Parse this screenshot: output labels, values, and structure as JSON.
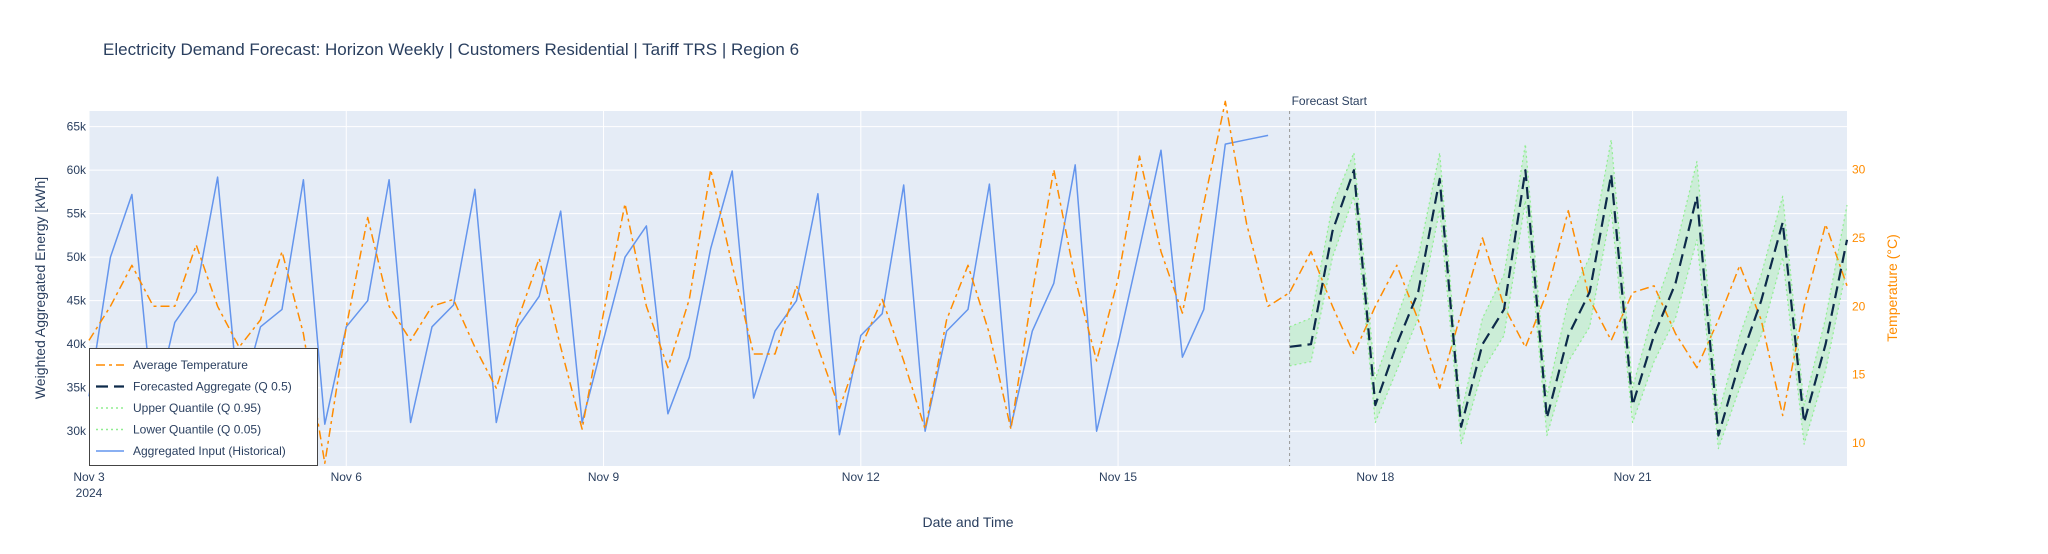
{
  "chart_data": {
    "type": "line",
    "title": "Electricity Demand Forecast: Horizon Weekly | Customers Residential | Tariff TRS | Region 6",
    "xlabel": "Date and Time",
    "ylabel": "Weighted Aggregated Energy [kWh]",
    "y2label": "Temperature (°C)",
    "x_ticks": [
      {
        "day": 0,
        "label": "Nov 3",
        "sublabel": "2024"
      },
      {
        "day": 3,
        "label": "Nov 6",
        "sublabel": ""
      },
      {
        "day": 6,
        "label": "Nov 9",
        "sublabel": ""
      },
      {
        "day": 9,
        "label": "Nov 12",
        "sublabel": ""
      },
      {
        "day": 12,
        "label": "Nov 15",
        "sublabel": ""
      },
      {
        "day": 15,
        "label": "Nov 18",
        "sublabel": ""
      },
      {
        "day": 18,
        "label": "Nov 21",
        "sublabel": ""
      }
    ],
    "xlim": [
      0,
      20.5
    ],
    "ylim": [
      26000,
      66800
    ],
    "y_ticks": [
      {
        "value": 30000,
        "label": "30k"
      },
      {
        "value": 35000,
        "label": "35k"
      },
      {
        "value": 40000,
        "label": "40k"
      },
      {
        "value": 45000,
        "label": "45k"
      },
      {
        "value": 50000,
        "label": "50k"
      },
      {
        "value": 55000,
        "label": "55k"
      },
      {
        "value": 60000,
        "label": "60k"
      },
      {
        "value": 65000,
        "label": "65k"
      }
    ],
    "y2lim": [
      8.3,
      34.3
    ],
    "y2_ticks": [
      {
        "value": 10,
        "label": "10"
      },
      {
        "value": 15,
        "label": "15"
      },
      {
        "value": 20,
        "label": "20"
      },
      {
        "value": 25,
        "label": "25"
      },
      {
        "value": 30,
        "label": "30"
      }
    ],
    "forecast_start": {
      "x": 14,
      "label": "Forecast Start"
    },
    "grid": true,
    "legend_position": "bottom-left",
    "series": [
      {
        "name": "Average Temperature",
        "axis": "y2",
        "color": "#ff8c00",
        "dash": "dashdot",
        "x": [
          0,
          0.25,
          0.5,
          0.75,
          1,
          1.25,
          1.5,
          1.75,
          2,
          2.25,
          2.5,
          2.75,
          3,
          3.25,
          3.5,
          3.75,
          4,
          4.25,
          4.5,
          4.75,
          5,
          5.25,
          5.5,
          5.75,
          6,
          6.25,
          6.5,
          6.75,
          7,
          7.25,
          7.5,
          7.75,
          8,
          8.25,
          8.5,
          8.75,
          9,
          9.25,
          9.5,
          9.75,
          10,
          10.25,
          10.5,
          10.75,
          11,
          11.25,
          11.5,
          11.75,
          12,
          12.25,
          12.5,
          12.75,
          13,
          13.25,
          13.5,
          13.75,
          14,
          14.25,
          14.5,
          14.75,
          15,
          15.25,
          15.5,
          15.75,
          16,
          16.25,
          16.5,
          16.75,
          17,
          17.25,
          17.5,
          17.75,
          18,
          18.25,
          18.5,
          18.75,
          19,
          19.25,
          19.5,
          19.75,
          20,
          20.25,
          20.5
        ],
        "values": [
          17.5,
          20,
          23,
          20,
          20,
          24.5,
          20,
          17,
          19,
          24,
          18,
          8.5,
          18.5,
          26.5,
          20,
          17.5,
          20,
          20.5,
          17,
          14,
          19,
          23.5,
          17,
          11,
          19.5,
          27.5,
          20,
          15.5,
          20.5,
          30,
          23,
          16.5,
          16.5,
          21.5,
          17,
          12.5,
          17,
          20.5,
          16,
          11,
          19,
          23,
          18,
          11,
          21,
          30,
          22,
          16,
          22,
          31,
          24,
          19.5,
          27.5,
          35,
          26,
          20,
          21,
          24,
          20,
          16.5,
          20,
          23,
          19,
          14,
          19.5,
          25,
          20,
          17,
          21,
          27,
          20.5,
          17.5,
          21,
          21.5,
          18,
          15.5,
          19,
          23,
          19,
          12,
          20,
          26,
          21.5
        ]
      },
      {
        "name": "Forecasted Aggregate (Q 0.5)",
        "axis": "y",
        "color": "#0d2a4a",
        "dash": "longdash",
        "x": [
          14,
          14.25,
          14.5,
          14.75,
          15,
          15.25,
          15.5,
          15.75,
          16,
          16.25,
          16.5,
          16.75,
          17,
          17.25,
          17.5,
          17.75,
          18,
          18.25,
          18.5,
          18.75,
          19,
          19.25,
          19.5,
          19.75,
          20,
          20.25,
          20.5
        ],
        "values": [
          39700,
          40000,
          53000,
          60000,
          33000,
          40000,
          46000,
          59000,
          30500,
          40000,
          44000,
          60000,
          31500,
          41000,
          46000,
          59500,
          33000,
          41000,
          47000,
          57000,
          29500,
          38000,
          45000,
          54000,
          31000,
          40000,
          52000
        ]
      },
      {
        "name": "Upper Quantile (Q 0.95)",
        "axis": "y",
        "color": "#90ee90",
        "dash": "dot",
        "x": [
          14,
          14.25,
          14.5,
          14.75,
          15,
          15.25,
          15.5,
          15.75,
          16,
          16.25,
          16.5,
          16.75,
          17,
          17.25,
          17.5,
          17.75,
          18,
          18.25,
          18.5,
          18.75,
          19,
          19.25,
          19.5,
          19.75,
          20,
          20.25,
          20.5
        ],
        "values": [
          42000,
          43000,
          56000,
          62000,
          36000,
          43000,
          50000,
          62000,
          32000,
          43000,
          48000,
          63000,
          34000,
          45000,
          50000,
          63500,
          35000,
          44000,
          51000,
          61000,
          32000,
          41000,
          48000,
          57000,
          33000,
          43000,
          56000
        ]
      },
      {
        "name": "Lower Quantile (Q 0.05)",
        "axis": "y",
        "color": "#90ee90",
        "dash": "dot",
        "x": [
          14,
          14.25,
          14.5,
          14.75,
          15,
          15.25,
          15.5,
          15.75,
          16,
          16.25,
          16.5,
          16.75,
          17,
          17.25,
          17.5,
          17.75,
          18,
          18.25,
          18.5,
          18.75,
          19,
          19.25,
          19.5,
          19.75,
          20,
          20.25,
          20.5
        ],
        "values": [
          37500,
          38000,
          50000,
          57000,
          31000,
          37000,
          43000,
          55500,
          28500,
          37000,
          41000,
          56500,
          29500,
          38000,
          42000,
          55500,
          31000,
          38000,
          43000,
          52000,
          28000,
          35000,
          41000,
          50000,
          28500,
          37000,
          49000
        ]
      },
      {
        "name": "Aggregated Input (Historical)",
        "axis": "y",
        "color": "#6495ed",
        "dash": "solid",
        "x": [
          0,
          0.25,
          0.5,
          0.75,
          1,
          1.25,
          1.5,
          1.75,
          2,
          2.25,
          2.5,
          2.75,
          3,
          3.25,
          3.5,
          3.75,
          4,
          4.25,
          4.5,
          4.75,
          5,
          5.25,
          5.5,
          5.75,
          6,
          6.25,
          6.5,
          6.75,
          7,
          7.25,
          7.5,
          7.75,
          8,
          8.25,
          8.5,
          8.75,
          9,
          9.25,
          9.5,
          9.75,
          10,
          10.25,
          10.5,
          10.75,
          11,
          11.25,
          11.5,
          11.75,
          12,
          12.25,
          12.5,
          12.75,
          13,
          13.25,
          13.5,
          13.75
        ],
        "values": [
          34000,
          50000,
          57200,
          32000,
          42500,
          46000,
          59200,
          33000,
          42000,
          44000,
          58900,
          30800,
          42000,
          45000,
          58900,
          31000,
          42000,
          44500,
          57800,
          31000,
          42000,
          45500,
          55300,
          31000,
          40500,
          50000,
          53600,
          32000,
          38500,
          51000,
          59900,
          33800,
          41500,
          45000,
          57300,
          29600,
          41000,
          43500,
          58300,
          30000,
          41500,
          44000,
          58400,
          30500,
          41500,
          47000,
          60600,
          30000,
          40000,
          51000,
          62300,
          38500,
          44000,
          63000,
          63500,
          64000
        ]
      }
    ]
  }
}
